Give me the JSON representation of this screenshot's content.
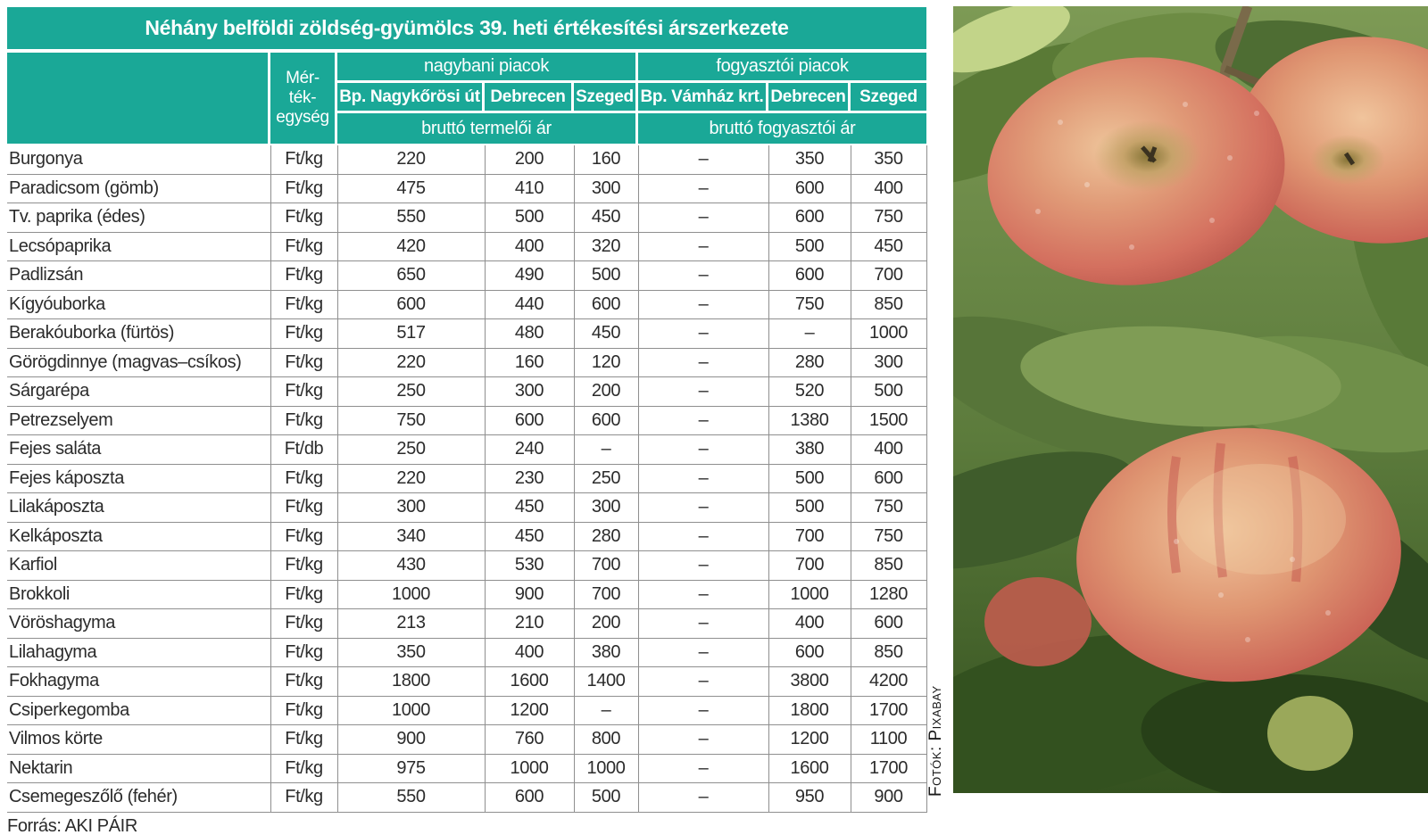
{
  "colors": {
    "teal": "#1aa897",
    "grid": "#8f8f8f",
    "text": "#2b2b2b"
  },
  "chart_data": {
    "type": "table",
    "title": "Néhány belföldi zöldség-gyümölcs 39. heti értékesítési árszerkezete",
    "unit_header_lines": [
      "Mér-",
      "ték-",
      "egység"
    ],
    "column_groups": [
      {
        "label": "nagybani piacok",
        "cities": [
          "Bp. Nagykőrösi út",
          "Debrecen",
          "Szeged"
        ],
        "price_type": "bruttó termelői ár"
      },
      {
        "label": "fogyasztói piacok",
        "cities": [
          "Bp. Vámház krt.",
          "Debrecen",
          "Szeged"
        ],
        "price_type": "bruttó fogyasztói ár"
      }
    ],
    "rows": [
      {
        "name": "Burgonya",
        "unit": "Ft/kg",
        "values": [
          "220",
          "200",
          "160",
          "–",
          "350",
          "350"
        ]
      },
      {
        "name": "Paradicsom (gömb)",
        "unit": "Ft/kg",
        "values": [
          "475",
          "410",
          "300",
          "–",
          "600",
          "400"
        ]
      },
      {
        "name": "Tv. paprika (édes)",
        "unit": "Ft/kg",
        "values": [
          "550",
          "500",
          "450",
          "–",
          "600",
          "750"
        ]
      },
      {
        "name": "Lecsópaprika",
        "unit": "Ft/kg",
        "values": [
          "420",
          "400",
          "320",
          "–",
          "500",
          "450"
        ]
      },
      {
        "name": "Padlizsán",
        "unit": "Ft/kg",
        "values": [
          "650",
          "490",
          "500",
          "–",
          "600",
          "700"
        ]
      },
      {
        "name": "Kígyóuborka",
        "unit": "Ft/kg",
        "values": [
          "600",
          "440",
          "600",
          "–",
          "750",
          "850"
        ]
      },
      {
        "name": "Berakóuborka (fürtös)",
        "unit": "Ft/kg",
        "values": [
          "517",
          "480",
          "450",
          "–",
          "–",
          "1000"
        ]
      },
      {
        "name": "Görögdinnye (magvas–csíkos)",
        "unit": "Ft/kg",
        "values": [
          "220",
          "160",
          "120",
          "–",
          "280",
          "300"
        ]
      },
      {
        "name": "Sárgarépa",
        "unit": "Ft/kg",
        "values": [
          "250",
          "300",
          "200",
          "–",
          "520",
          "500"
        ]
      },
      {
        "name": "Petrezselyem",
        "unit": "Ft/kg",
        "values": [
          "750",
          "600",
          "600",
          "–",
          "1380",
          "1500"
        ]
      },
      {
        "name": "Fejes saláta",
        "unit": "Ft/db",
        "values": [
          "250",
          "240",
          "–",
          "–",
          "380",
          "400"
        ]
      },
      {
        "name": "Fejes káposzta",
        "unit": "Ft/kg",
        "values": [
          "220",
          "230",
          "250",
          "–",
          "500",
          "600"
        ]
      },
      {
        "name": "Lilakáposzta",
        "unit": "Ft/kg",
        "values": [
          "300",
          "450",
          "300",
          "–",
          "500",
          "750"
        ]
      },
      {
        "name": "Kelkáposzta",
        "unit": "Ft/kg",
        "values": [
          "340",
          "450",
          "280",
          "–",
          "700",
          "750"
        ]
      },
      {
        "name": "Karfiol",
        "unit": "Ft/kg",
        "values": [
          "430",
          "530",
          "700",
          "–",
          "700",
          "850"
        ]
      },
      {
        "name": "Brokkoli",
        "unit": "Ft/kg",
        "values": [
          "1000",
          "900",
          "700",
          "–",
          "1000",
          "1280"
        ]
      },
      {
        "name": "Vöröshagyma",
        "unit": "Ft/kg",
        "values": [
          "213",
          "210",
          "200",
          "–",
          "400",
          "600"
        ]
      },
      {
        "name": "Lilahagyma",
        "unit": "Ft/kg",
        "values": [
          "350",
          "400",
          "380",
          "–",
          "600",
          "850"
        ]
      },
      {
        "name": "Fokhagyma",
        "unit": "Ft/kg",
        "values": [
          "1800",
          "1600",
          "1400",
          "–",
          "3800",
          "4200"
        ]
      },
      {
        "name": "Csiperkegomba",
        "unit": "Ft/kg",
        "values": [
          "1000",
          "1200",
          "–",
          "–",
          "1800",
          "1700"
        ]
      },
      {
        "name": "Vilmos körte",
        "unit": "Ft/kg",
        "values": [
          "900",
          "760",
          "800",
          "–",
          "1200",
          "1100"
        ]
      },
      {
        "name": "Nektarin",
        "unit": "Ft/kg",
        "values": [
          "975",
          "1000",
          "1000",
          "–",
          "1600",
          "1700"
        ]
      },
      {
        "name": "Csemegeszőlő (fehér)",
        "unit": "Ft/kg",
        "values": [
          "550",
          "600",
          "500",
          "–",
          "950",
          "900"
        ]
      }
    ],
    "source": "Forrás: AKI PÁIR"
  },
  "photo": {
    "credit": "Fotók: Pixabay"
  }
}
